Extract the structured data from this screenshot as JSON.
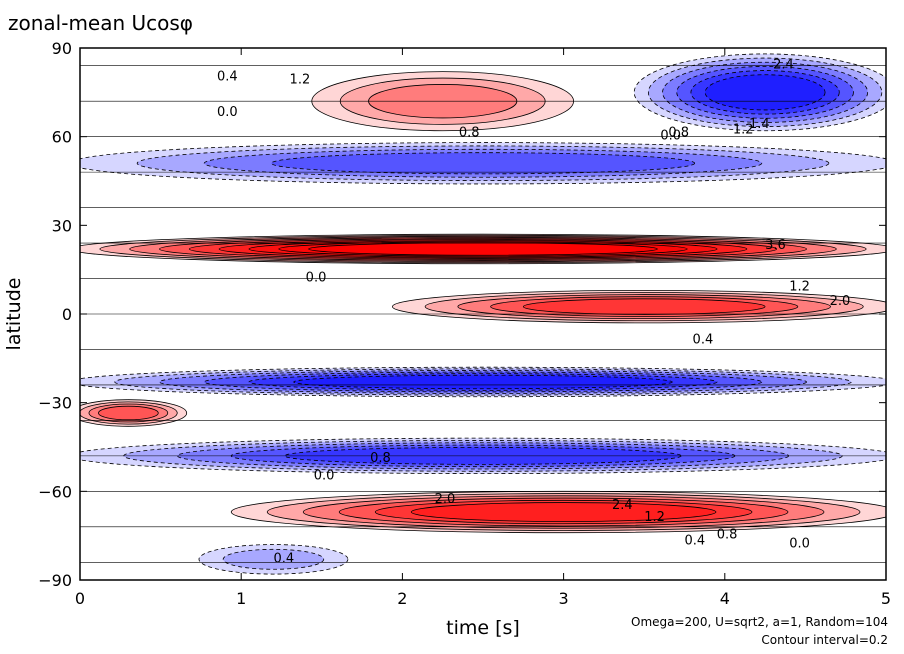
{
  "chart_data": {
    "type": "heatmap",
    "title": "zonal-mean Ucosφ",
    "xlabel": "time [s]",
    "ylabel": "latitude",
    "xlim": [
      0,
      5
    ],
    "ylim": [
      -90,
      90
    ],
    "x_ticks": [
      0,
      1,
      2,
      3,
      4,
      5
    ],
    "x_tick_labels": [
      "0",
      "1",
      "2",
      "3",
      "4",
      "5"
    ],
    "y_ticks": [
      -90,
      -60,
      -30,
      0,
      30,
      60,
      90
    ],
    "y_tick_labels": [
      "−90",
      "−60",
      "−30",
      "0",
      "30",
      "60",
      "90"
    ],
    "contour_interval": 0.2,
    "colormap": {
      "negative": "#0000ff",
      "zero": "#ffffff",
      "positive": "#ff0000"
    },
    "negative_contours": "dashed",
    "grid": false,
    "annotations": [
      "Omega=200, U=sqrt2, a=1, Random=104",
      "Contour interval=0.2"
    ],
    "features": [
      {
        "t": [
          1.5,
          3.0
        ],
        "lat": [
          62,
          82
        ],
        "value": 1.2,
        "sign": "positive"
      },
      {
        "t": [
          3.5,
          5.0
        ],
        "lat": [
          62,
          88
        ],
        "value": -2.4,
        "sign": "negative"
      },
      {
        "t": [
          0.0,
          5.0
        ],
        "lat": [
          44,
          58
        ],
        "value": -1.6,
        "sign": "negative"
      },
      {
        "t": [
          0.0,
          5.0
        ],
        "lat": [
          17,
          27
        ],
        "value": 3.6,
        "sign": "positive"
      },
      {
        "t": [
          2.0,
          5.0
        ],
        "lat": [
          -3,
          8
        ],
        "value": 2.0,
        "sign": "positive"
      },
      {
        "t": [
          0.0,
          5.0
        ],
        "lat": [
          -28,
          -18
        ],
        "value": -2.4,
        "sign": "negative"
      },
      {
        "t": [
          0.0,
          0.6
        ],
        "lat": [
          -38,
          -29
        ],
        "value": 1.6,
        "sign": "positive"
      },
      {
        "t": [
          0.0,
          5.0
        ],
        "lat": [
          -54,
          -42
        ],
        "value": -2.0,
        "sign": "negative"
      },
      {
        "t": [
          1.0,
          5.0
        ],
        "lat": [
          -74,
          -60
        ],
        "value": 2.4,
        "sign": "positive"
      },
      {
        "t": [
          0.8,
          1.6
        ],
        "lat": [
          -88,
          -78
        ],
        "value": -0.8,
        "sign": "negative"
      }
    ],
    "contour_labels": [
      "0.4",
      "1.2",
      "0.8",
      "0.0",
      "2.4",
      "1.4",
      "1.2",
      "0.8",
      "0.0",
      "3.6",
      "0.0",
      "1.2",
      "2.0",
      "0.4",
      "0.8",
      "0.0",
      "2.0",
      "2.4",
      "1.2",
      "0.4",
      "0.8",
      "0.0",
      "0.4"
    ]
  }
}
